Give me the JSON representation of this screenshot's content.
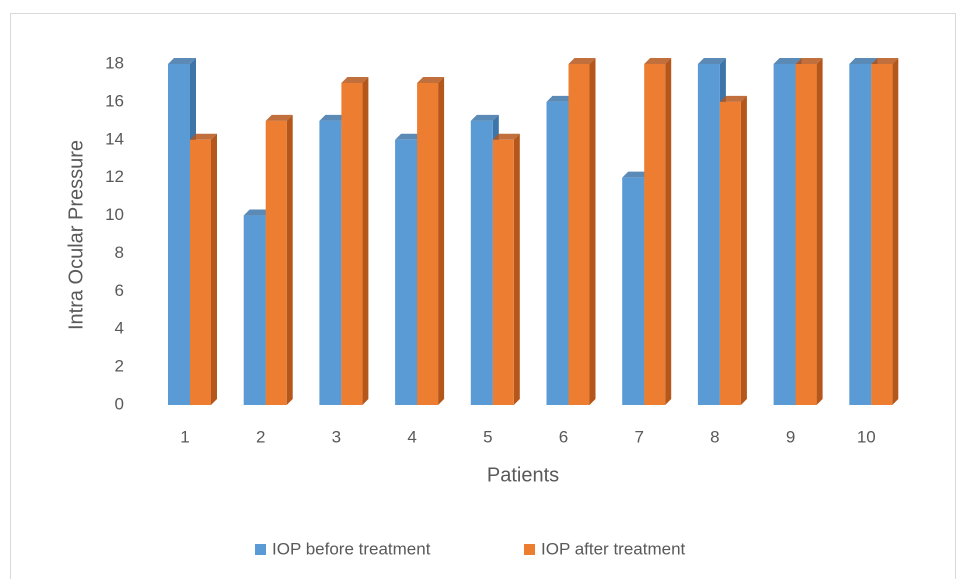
{
  "chart_data": {
    "type": "bar3d",
    "x_label": "Patients",
    "y_label": "Intra Ocular Pressure",
    "categories": [
      "1",
      "2",
      "3",
      "4",
      "5",
      "6",
      "7",
      "8",
      "9",
      "10"
    ],
    "series": [
      {
        "name": "IOP before treatment",
        "color": "#5b9bd5",
        "side": "#3d75a8",
        "values": [
          18,
          10,
          15,
          14,
          15,
          16,
          12,
          18,
          18,
          18
        ]
      },
      {
        "name": "IOP after treatment",
        "color": "#ed7d31",
        "side": "#b5561b",
        "values": [
          14,
          15,
          17,
          17,
          14,
          18,
          18,
          16,
          18,
          18
        ]
      }
    ],
    "ylim": [
      0,
      18
    ],
    "yticks": [
      0,
      2,
      4,
      6,
      8,
      10,
      12,
      14,
      16,
      18
    ],
    "grid": false,
    "legend": "bottom"
  }
}
